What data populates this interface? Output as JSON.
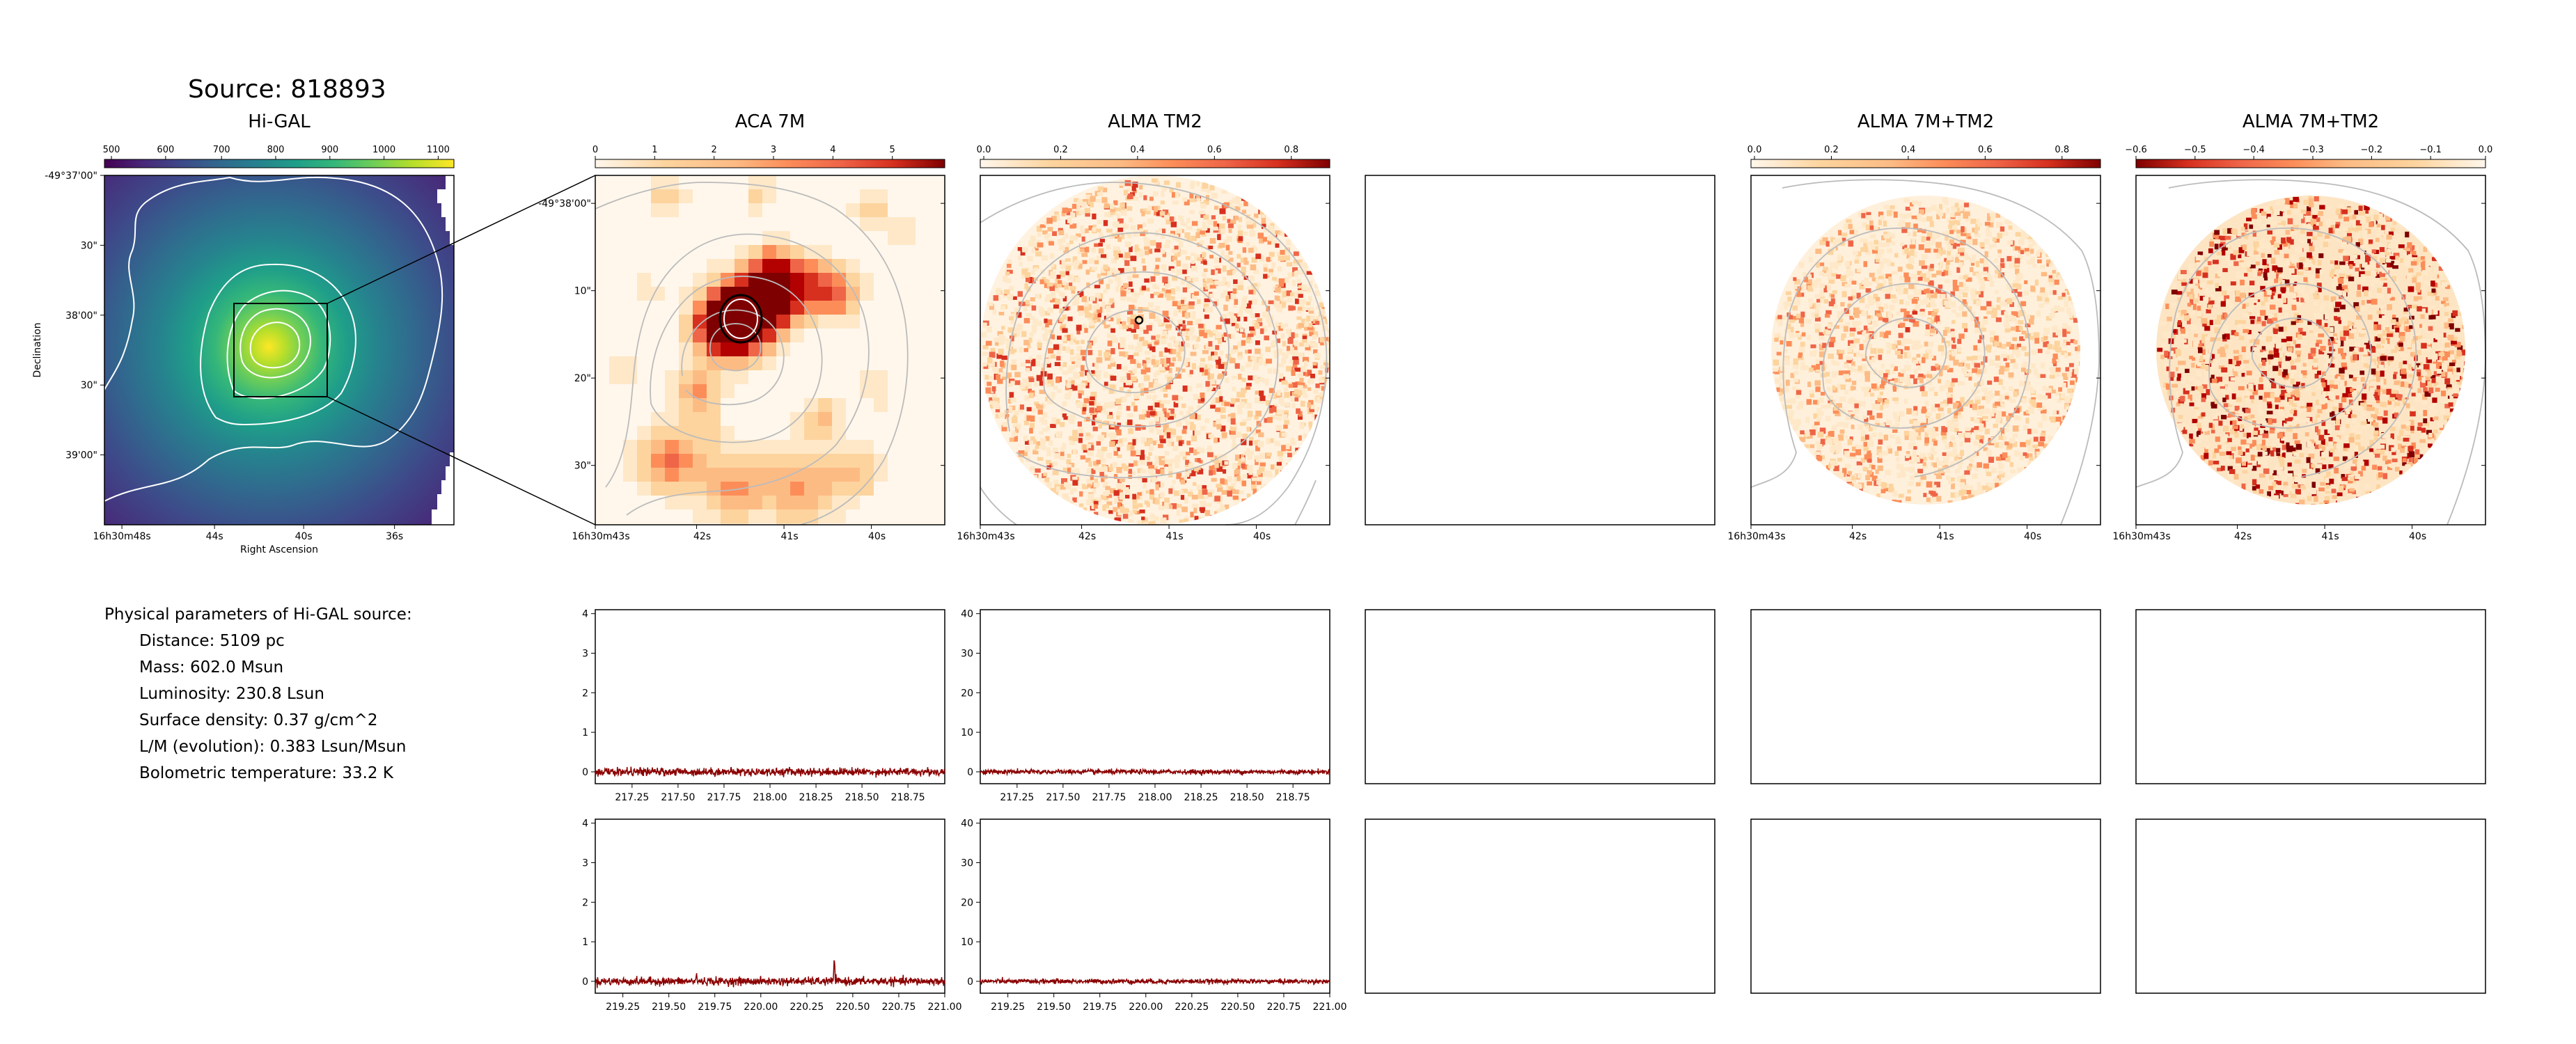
{
  "source_title": "Source: 818893",
  "panels": [
    {
      "title": "Hi-GAL",
      "cbar_ticks": [
        "500",
        "600",
        "700",
        "800",
        "900",
        "1000",
        "1100"
      ]
    },
    {
      "title": "ACA 7M",
      "cbar_ticks": [
        "0",
        "1",
        "2",
        "3",
        "4",
        "5"
      ]
    },
    {
      "title": "ALMA TM2",
      "cbar_ticks": [
        "0.0",
        "0.2",
        "0.4",
        "0.6",
        "0.8"
      ]
    },
    {
      "title": "",
      "cbar_ticks": []
    },
    {
      "title": "ALMA 7M+TM2",
      "cbar_ticks": [
        "0.0",
        "0.2",
        "0.4",
        "0.6",
        "0.8"
      ]
    },
    {
      "title": "ALMA 7M+TM2",
      "cbar_ticks": [
        "−0.6",
        "−0.5",
        "−0.4",
        "−0.3",
        "−0.2",
        "−0.1",
        "0.0"
      ]
    }
  ],
  "higal_axes": {
    "xlabel": "Right Ascension",
    "ylabel": "Declination",
    "xticks": [
      "16h30m48s",
      "44s",
      "40s",
      "36s"
    ],
    "yticks": [
      "-49°37'00\"",
      "30\"",
      "38'00\"",
      "30\"",
      "39'00\""
    ]
  },
  "alma_axes": {
    "xticks": [
      "16h30m43s",
      "42s",
      "41s",
      "40s"
    ],
    "yticks": [
      "-49°38'00\"",
      "10\"",
      "20\"",
      "30\""
    ]
  },
  "params": {
    "header": "Physical parameters of Hi-GAL source:",
    "lines": [
      "Distance: 5109 pc",
      "Mass: 602.0 Msun",
      "Luminosity: 230.8 Lsun",
      "Surface density: 0.37 g/cm^2",
      "L/M (evolution): 0.383 Lsun/Msun",
      "Bolometric temperature: 33.2 K"
    ]
  },
  "chart_data": [
    {
      "type": "line",
      "name": "spectrum-aca7m-spw1",
      "x_range": [
        217.05,
        218.95
      ],
      "ylim": [
        -0.3,
        4.1
      ],
      "xticks": [
        "217.25",
        "217.50",
        "217.75",
        "218.00",
        "218.25",
        "218.50",
        "218.75"
      ],
      "yticks": [
        "0",
        "1",
        "2",
        "3",
        "4"
      ],
      "noise_sigma": 0.05,
      "peaks": []
    },
    {
      "type": "line",
      "name": "spectrum-tm2-spw1",
      "x_range": [
        217.05,
        218.95
      ],
      "ylim": [
        -3,
        41
      ],
      "xticks": [
        "217.25",
        "217.50",
        "217.75",
        "218.00",
        "218.25",
        "218.50",
        "218.75"
      ],
      "yticks": [
        "0",
        "10",
        "20",
        "30",
        "40"
      ],
      "noise_sigma": 0.3,
      "peaks": []
    },
    {
      "type": "line",
      "name": "spectrum-aca7m-spw2",
      "x_range": [
        219.1,
        221.0
      ],
      "ylim": [
        -0.3,
        4.1
      ],
      "xticks": [
        "219.25",
        "219.50",
        "219.75",
        "220.00",
        "220.25",
        "220.50",
        "220.75",
        "221.00"
      ],
      "yticks": [
        "0",
        "1",
        "2",
        "3",
        "4"
      ],
      "noise_sigma": 0.05,
      "peaks": [
        {
          "x": 220.4,
          "y": 0.55
        },
        {
          "x": 219.65,
          "y": 0.15
        }
      ]
    },
    {
      "type": "line",
      "name": "spectrum-tm2-spw2",
      "x_range": [
        219.1,
        221.0
      ],
      "ylim": [
        -3,
        41
      ],
      "xticks": [
        "219.25",
        "219.50",
        "219.75",
        "220.00",
        "220.25",
        "220.50",
        "220.75",
        "221.00"
      ],
      "yticks": [
        "0",
        "10",
        "20",
        "30",
        "40"
      ],
      "noise_sigma": 0.3,
      "peaks": []
    }
  ],
  "colors": {
    "spectrum": "#8b0000",
    "contour_higal": "#ffffff",
    "contour_alma": "#aaaaaa",
    "viridis": [
      "#440154",
      "#482878",
      "#3e4989",
      "#31688e",
      "#26828e",
      "#1f9e89",
      "#35b779",
      "#6ece58",
      "#b5de2b",
      "#fde725"
    ],
    "orrd": [
      "#fff7ec",
      "#fee8c8",
      "#fdd49e",
      "#fdbb84",
      "#fc8d59",
      "#ef6548",
      "#d7301f",
      "#b30000",
      "#7f0000"
    ]
  }
}
